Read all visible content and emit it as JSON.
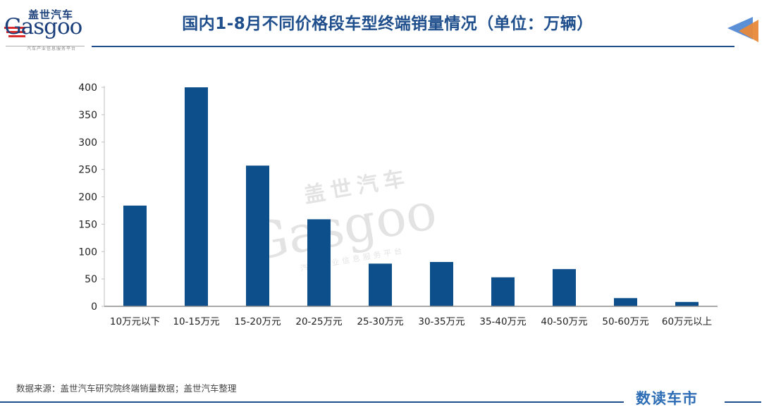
{
  "header": {
    "logo_cn": "盖世汽车",
    "logo_en": "Gasgoo",
    "logo_sub": "汽车产业信息服务平台",
    "title": "国内1-8月不同价格段车型终端销量情况（单位：万辆）"
  },
  "footer": {
    "source": "数据来源：盖世汽车研究院终端销量数据；盖世汽车整理",
    "brand": "数读车市"
  },
  "colors": {
    "bar": "#0d4f8b",
    "accent_blue": "#1f4e8c",
    "arrow_orange": "#e8893a",
    "arrow_blue": "#5b8fd6"
  },
  "chart_data": {
    "type": "bar",
    "categories": [
      "10万元以下",
      "10-15万元",
      "15-20万元",
      "20-25万元",
      "25-30万元",
      "30-35万元",
      "35-40万元",
      "40-50万元",
      "50-60万元",
      "60万元以上"
    ],
    "values": [
      184,
      400,
      257,
      159,
      78,
      81,
      53,
      68,
      15,
      8
    ],
    "ylim": [
      0,
      400
    ],
    "yticks": [
      0,
      50,
      100,
      150,
      200,
      250,
      300,
      350,
      400
    ],
    "grid": false,
    "legend": false
  }
}
